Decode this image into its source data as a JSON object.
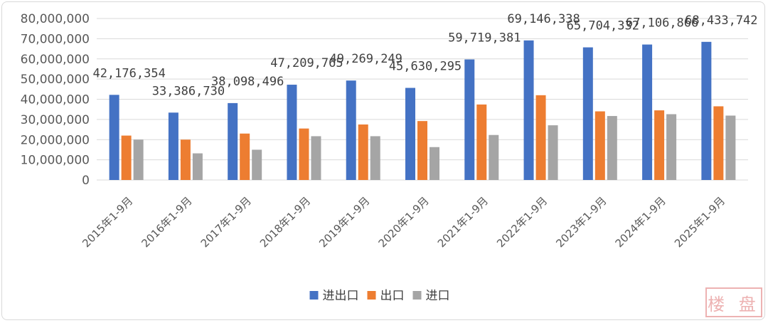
{
  "colors": {
    "series": [
      "#4472C4",
      "#ED7D31",
      "#A5A5A5"
    ],
    "grid": "#d9d9d9"
  },
  "watermark": "楼 盘",
  "chart_data": {
    "type": "bar",
    "title": "",
    "xlabel": "",
    "ylabel": "",
    "ylim": [
      0,
      80000000
    ],
    "yticks": [
      0,
      10000000,
      20000000,
      30000000,
      40000000,
      50000000,
      60000000,
      70000000,
      80000000
    ],
    "ytick_labels": [
      "0",
      "10,000,000",
      "20,000,000",
      "30,000,000",
      "40,000,000",
      "50,000,000",
      "60,000,000",
      "70,000,000",
      "80,000,000"
    ],
    "grid": true,
    "legend": "bottom",
    "categories": [
      "2015年1-9月",
      "2016年1-9月",
      "2017年1-9月",
      "2018年1-9月",
      "2019年1-9月",
      "2020年1-9月",
      "2021年1-9月",
      "2022年1-9月",
      "2023年1-9月",
      "2024年1-9月",
      "2025年1-9月"
    ],
    "series": [
      {
        "name": "进出口",
        "values": [
          42176354,
          33386730,
          38098496,
          47209765,
          49269249,
          45630295,
          59719381,
          69146338,
          65704332,
          67106866,
          68433742
        ]
      },
      {
        "name": "出口",
        "values": [
          22000000,
          20000000,
          23000000,
          25500000,
          27500000,
          29200000,
          37400000,
          42000000,
          34000000,
          34500000,
          36500000
        ]
      },
      {
        "name": "进口",
        "values": [
          20000000,
          13200000,
          15000000,
          21700000,
          21700000,
          16300000,
          22300000,
          27100000,
          31700000,
          32600000,
          31900000
        ]
      }
    ],
    "data_labels": [
      "42,176,354",
      "33,386,730",
      "38,098,496",
      "47,209,765",
      "49,269,249",
      "45,630,295",
      "59,719,381",
      "69,146,338",
      "65,704,332",
      "67,106,866",
      "68,433,742"
    ]
  }
}
